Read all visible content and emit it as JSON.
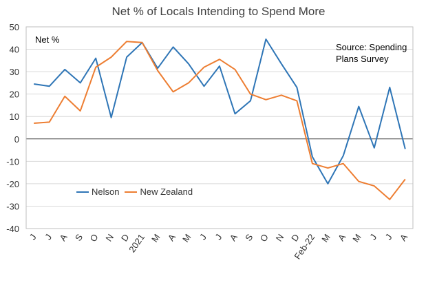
{
  "chart_data": {
    "type": "line",
    "title": "Net % of Locals Intending to Spend More",
    "ylabel": "Net %",
    "annotation": "Source: Spending Plans Survey",
    "ylim": [
      -40,
      50
    ],
    "yticks": [
      50,
      40,
      30,
      20,
      10,
      0,
      -10,
      -20,
      -30,
      -40
    ],
    "categories": [
      "J",
      "J",
      "A",
      "S",
      "O",
      "N",
      "D",
      "2021",
      "M",
      "A",
      "M",
      "J",
      "J",
      "A",
      "S",
      "O",
      "N",
      "D",
      "Feb-22",
      "M",
      "A",
      "M",
      "J",
      "J",
      "A"
    ],
    "series": [
      {
        "name": "Nelson",
        "color": "#2E75B6",
        "values": [
          24.5,
          23.5,
          31,
          25,
          36,
          9.5,
          36.5,
          43,
          31.5,
          41,
          33.5,
          23.5,
          32.5,
          11.2,
          17,
          44.5,
          33.5,
          23,
          -8,
          -20,
          -7.5,
          14.5,
          -4,
          23,
          -4.5
        ]
      },
      {
        "name": "New Zealand",
        "color": "#ED7D31",
        "values": [
          7,
          7.5,
          19,
          12.5,
          32,
          36.5,
          43.5,
          43,
          30.5,
          21,
          25,
          32,
          35.5,
          31,
          20,
          17.5,
          19.5,
          17,
          -11,
          -13,
          -11,
          -19,
          -21,
          -27,
          -18
        ]
      }
    ],
    "grid": true,
    "legend": "bottom-left"
  }
}
